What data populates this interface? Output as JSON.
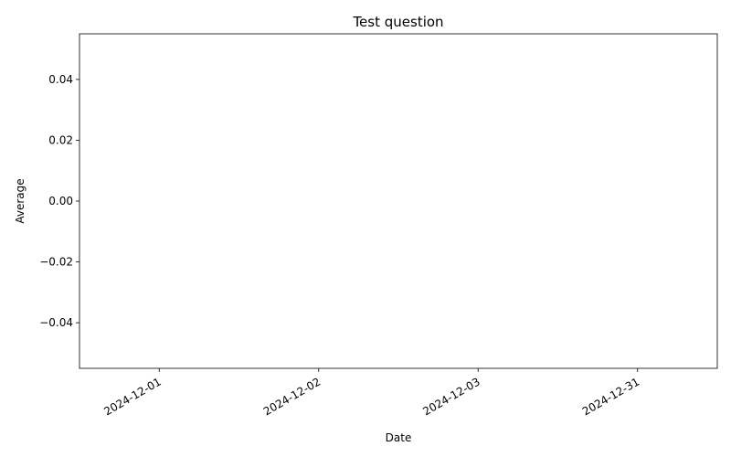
{
  "chart_data": {
    "type": "line",
    "title": "Test question",
    "xlabel": "Date",
    "ylabel": "Average",
    "x_categories": [
      "2024-12-01",
      "2024-12-02",
      "2024-12-03",
      "2024-12-31"
    ],
    "y_ticks": [
      0.04,
      0.02,
      0.0,
      -0.02,
      -0.04
    ],
    "y_tick_labels": [
      "0.04",
      "0.02",
      "0.00",
      "−0.02",
      "−0.04"
    ],
    "ylim": [
      -0.055,
      0.055
    ],
    "series": [
      {
        "values": []
      }
    ],
    "grid": false,
    "legend": "none"
  }
}
